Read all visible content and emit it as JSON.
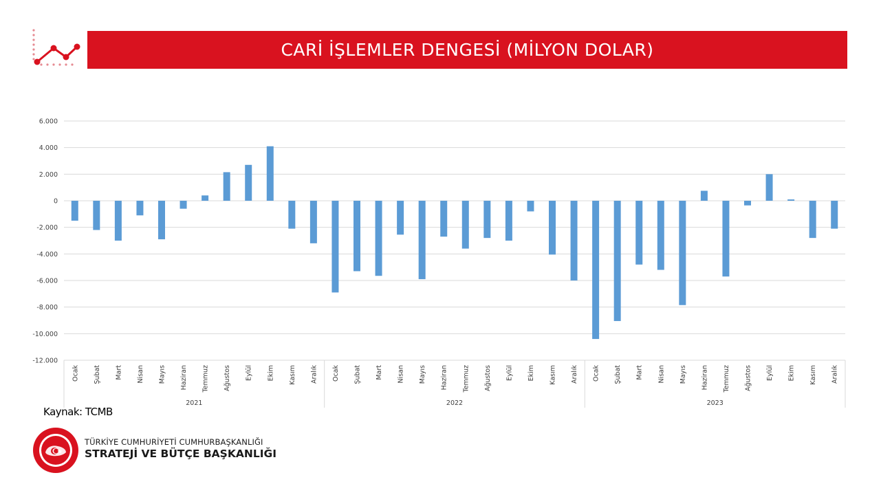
{
  "header": {
    "title": "CARİ İŞLEMLER DENGESİ (MİLYON DOLAR)",
    "icon": "line-chart-icon",
    "accent_color": "#d9121f"
  },
  "source": {
    "label": "Kaynak: TCMB"
  },
  "footer": {
    "logo": "strategy-budget-seal-icon",
    "line1": "TÜRKİYE CUMHURİYETİ CUMHURBAŞKANLIĞI",
    "line2": "STRATEJİ VE BÜTÇE BAŞKANLIĞI"
  },
  "chart_data": {
    "type": "bar",
    "title": "CARİ İŞLEMLER DENGESİ (MİLYON DOLAR)",
    "bar_color": "#5b9bd5",
    "grid": true,
    "legend": "none",
    "ylim": [
      -12000,
      6000
    ],
    "yticks": [
      6000,
      4000,
      2000,
      0,
      -2000,
      -4000,
      -6000,
      -8000,
      -10000,
      -12000
    ],
    "ytick_labels": [
      "6.000",
      "4.000",
      "2.000",
      "0",
      "-2.000",
      "-4.000",
      "-6.000",
      "-8.000",
      "-10.000",
      "-12.000"
    ],
    "groups": [
      {
        "year": "2021",
        "categories": [
          "Ocak",
          "Şubat",
          "Mart",
          "Nisan",
          "Mayıs",
          "Haziran",
          "Temmuz",
          "Ağustos",
          "Eylül",
          "Ekim",
          "Kasım",
          "Aralık"
        ],
        "values": [
          -1500,
          -2200,
          -3000,
          -1100,
          -2900,
          -600,
          400,
          2150,
          2700,
          4100,
          -2100,
          -3200
        ]
      },
      {
        "year": "2022",
        "categories": [
          "Ocak",
          "Şubat",
          "Mart",
          "Nisan",
          "Mayıs",
          "Haziran",
          "Temmuz",
          "Ağustos",
          "Eylül",
          "Ekim",
          "Kasım",
          "Aralık"
        ],
        "values": [
          -6900,
          -5300,
          -5650,
          -2550,
          -5900,
          -2700,
          -3600,
          -2800,
          -3000,
          -800,
          -4050,
          -6000
        ]
      },
      {
        "year": "2023",
        "categories": [
          "Ocak",
          "Şubat",
          "Mart",
          "Nisan",
          "Mayıs",
          "Haziran",
          "Temmuz",
          "Ağustos",
          "Eylül",
          "Ekim",
          "Kasım",
          "Aralık"
        ],
        "values": [
          -10400,
          -9050,
          -4800,
          -5200,
          -7850,
          750,
          -5700,
          -350,
          2000,
          100,
          -2800,
          -2100
        ]
      }
    ]
  }
}
